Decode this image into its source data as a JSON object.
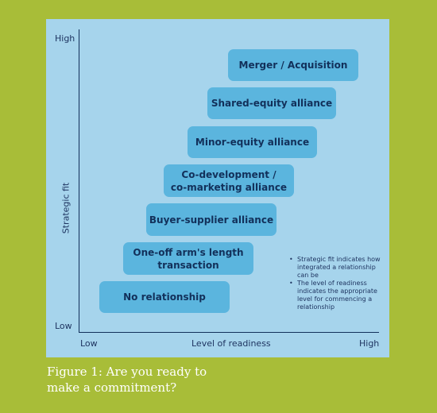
{
  "diagram": {
    "y_axis": {
      "label": "Strategic fit",
      "high": "High",
      "low": "Low"
    },
    "x_axis": {
      "label": "Level of readiness",
      "low": "Low",
      "high": "High"
    },
    "boxes": [
      {
        "label": "Merger / Acquisition"
      },
      {
        "label": "Shared-equity alliance"
      },
      {
        "label": "Minor-equity alliance"
      },
      {
        "label_line1": "Co-development /",
        "label_line2": "co-marketing alliance"
      },
      {
        "label": "Buyer-supplier alliance"
      },
      {
        "label_line1": "One-off arm's length",
        "label_line2": "transaction"
      },
      {
        "label": "No relationship"
      }
    ],
    "notes": [
      "Strategic fit indicates how integrated a relationship can be",
      "The level of readiness indicates the appropriate level for commencing a relationship"
    ]
  },
  "caption": {
    "line1": "Figure 1: Are you ready to",
    "line2": "make a commitment?"
  }
}
